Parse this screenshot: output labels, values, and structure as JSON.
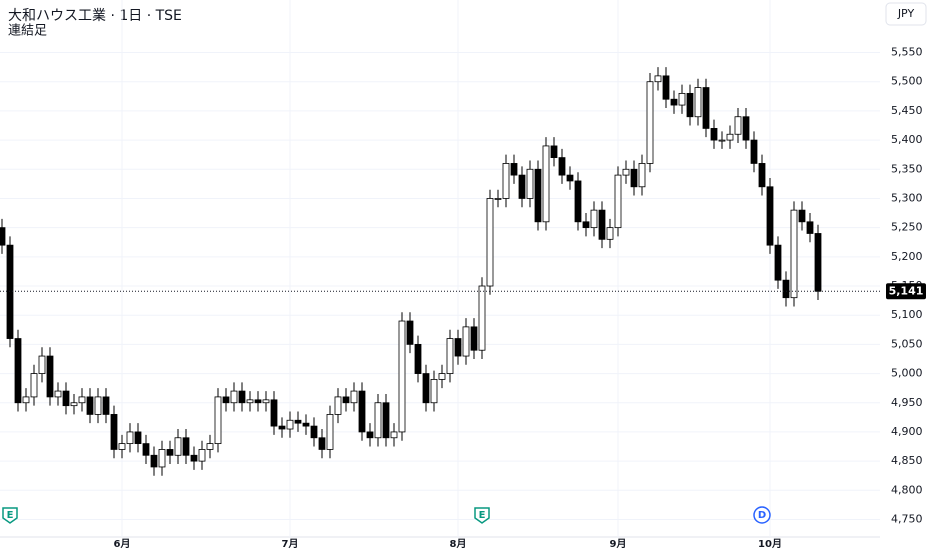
{
  "chart_data": {
    "type": "candlestick",
    "title": "大和ハウス工業 · 1日 · TSE",
    "subtitle": "連結足",
    "currency": "JPY",
    "up_color": "#ffffff",
    "down_color": "#000000",
    "outline_color": "#000000",
    "ylim": [
      4720,
      5640
    ],
    "yticks": [
      {
        "value": 4750,
        "label": "4,750"
      },
      {
        "value": 4800,
        "label": "4,800"
      },
      {
        "value": 4850,
        "label": "4,850"
      },
      {
        "value": 4900,
        "label": "4,900"
      },
      {
        "value": 4950,
        "label": "4,950"
      },
      {
        "value": 5000,
        "label": "5,000"
      },
      {
        "value": 5050,
        "label": "5,050"
      },
      {
        "value": 5100,
        "label": "5,100"
      },
      {
        "value": 5150,
        "label": "5,150"
      },
      {
        "value": 5200,
        "label": "5,200"
      },
      {
        "value": 5250,
        "label": "5,250"
      },
      {
        "value": 5300,
        "label": "5,300"
      },
      {
        "value": 5350,
        "label": "5,350"
      },
      {
        "value": 5400,
        "label": "5,400"
      },
      {
        "value": 5450,
        "label": "5,450"
      },
      {
        "value": 5500,
        "label": "5,500"
      },
      {
        "value": 5550,
        "label": "5,550"
      }
    ],
    "grid": true,
    "last": {
      "value": 5141,
      "label": "5,141"
    },
    "events": [
      {
        "label": "E",
        "at": 1
      },
      {
        "label": "E",
        "at": 60
      },
      {
        "label": "D",
        "at": 95
      }
    ],
    "categories": [
      null,
      null,
      null,
      null,
      null,
      null,
      null,
      null,
      null,
      null,
      null,
      null,
      null,
      null,
      null,
      "6月",
      null,
      null,
      null,
      null,
      null,
      null,
      null,
      null,
      null,
      null,
      null,
      null,
      null,
      null,
      null,
      null,
      null,
      null,
      null,
      null,
      "7月",
      null,
      null,
      null,
      null,
      null,
      null,
      null,
      null,
      null,
      null,
      null,
      null,
      null,
      null,
      null,
      null,
      null,
      null,
      null,
      null,
      "8月",
      null,
      null,
      null,
      null,
      null,
      null,
      null,
      null,
      null,
      null,
      null,
      null,
      null,
      null,
      null,
      null,
      null,
      null,
      null,
      "9月",
      null,
      null,
      null,
      null,
      null,
      null,
      null,
      null,
      null,
      null,
      null,
      null,
      null,
      null,
      null,
      null,
      null,
      null,
      "10月",
      null,
      null,
      null,
      null,
      null,
      null
    ],
    "open": [
      5250,
      5220,
      5060,
      4950,
      4960,
      5000,
      5030,
      4960,
      4970,
      4945,
      4950,
      4960,
      4930,
      4960,
      4930,
      4870,
      4880,
      4900,
      4880,
      4860,
      4840,
      4870,
      4860,
      4890,
      4860,
      4850,
      4870,
      4880,
      4960,
      4950,
      4970,
      4950,
      4955,
      4950,
      4955,
      4910,
      4905,
      4920,
      4915,
      4910,
      4890,
      4870,
      4930,
      4960,
      4950,
      4970,
      4900,
      4890,
      4950,
      4890,
      4900,
      5090,
      5050,
      5000,
      4950,
      4990,
      5000,
      5060,
      5030,
      5080,
      5040,
      5150,
      5300,
      5300,
      5360,
      5340,
      5300,
      5350,
      5260,
      5390,
      5370,
      5340,
      5330,
      5260,
      5250,
      5280,
      5230,
      5250,
      5340,
      5350,
      5320,
      5360,
      5500,
      5510,
      5470,
      5460,
      5480,
      5440,
      5490,
      5420,
      5400,
      5400,
      5410,
      5440,
      5400,
      5360,
      5320,
      5220,
      5160,
      5130,
      5280,
      5260,
      5240
    ],
    "high": [
      5265,
      5235,
      5075,
      4975,
      5015,
      5045,
      5045,
      4985,
      4985,
      4965,
      4975,
      4975,
      4975,
      4975,
      4945,
      4895,
      4915,
      4915,
      4895,
      4875,
      4885,
      4885,
      4905,
      4905,
      4875,
      4885,
      4895,
      4975,
      4975,
      4985,
      4985,
      4970,
      4970,
      4970,
      4970,
      4925,
      4935,
      4935,
      4930,
      4925,
      4905,
      4945,
      4975,
      4975,
      4985,
      4985,
      4915,
      4965,
      4965,
      4915,
      5105,
      5105,
      5065,
      5015,
      5005,
      5015,
      5075,
      5075,
      5095,
      5095,
      5165,
      5315,
      5315,
      5375,
      5375,
      5355,
      5365,
      5365,
      5405,
      5405,
      5385,
      5355,
      5345,
      5275,
      5295,
      5295,
      5265,
      5355,
      5365,
      5365,
      5375,
      5515,
      5525,
      5525,
      5485,
      5495,
      5495,
      5505,
      5505,
      5435,
      5415,
      5425,
      5455,
      5455,
      5415,
      5375,
      5335,
      5235,
      5175,
      5295,
      5295,
      5275,
      5255
    ],
    "low": [
      5205,
      5045,
      4935,
      4935,
      4945,
      4985,
      4945,
      4945,
      4930,
      4930,
      4935,
      4915,
      4915,
      4915,
      4855,
      4855,
      4865,
      4865,
      4845,
      4825,
      4825,
      4845,
      4845,
      4845,
      4835,
      4835,
      4855,
      4865,
      4935,
      4935,
      4935,
      4935,
      4935,
      4935,
      4895,
      4890,
      4890,
      4900,
      4895,
      4875,
      4855,
      4855,
      4915,
      4935,
      4935,
      4885,
      4875,
      4875,
      4875,
      4875,
      4885,
      5035,
      4985,
      4935,
      4935,
      4975,
      4985,
      5015,
      5015,
      5025,
      5025,
      5135,
      5285,
      5285,
      5325,
      5285,
      5285,
      5245,
      5245,
      5355,
      5325,
      5315,
      5245,
      5235,
      5235,
      5215,
      5215,
      5235,
      5325,
      5305,
      5305,
      5345,
      5485,
      5455,
      5445,
      5445,
      5425,
      5425,
      5405,
      5385,
      5385,
      5385,
      5395,
      5385,
      5345,
      5305,
      5205,
      5145,
      5115,
      5115,
      5245,
      5225,
      5126
    ],
    "close": [
      5220,
      5060,
      4950,
      4960,
      5000,
      5030,
      4960,
      4970,
      4945,
      4950,
      4960,
      4930,
      4960,
      4930,
      4870,
      4880,
      4900,
      4880,
      4860,
      4840,
      4870,
      4860,
      4890,
      4860,
      4850,
      4870,
      4880,
      4960,
      4950,
      4970,
      4950,
      4955,
      4950,
      4955,
      4910,
      4905,
      4920,
      4915,
      4910,
      4890,
      4870,
      4930,
      4960,
      4950,
      4970,
      4900,
      4890,
      4950,
      4890,
      4900,
      5090,
      5050,
      5000,
      4950,
      4990,
      5000,
      5060,
      5030,
      5080,
      5040,
      5150,
      5300,
      5300,
      5360,
      5340,
      5300,
      5350,
      5260,
      5390,
      5370,
      5340,
      5330,
      5260,
      5250,
      5280,
      5230,
      5250,
      5340,
      5350,
      5320,
      5360,
      5500,
      5510,
      5470,
      5460,
      5480,
      5440,
      5490,
      5420,
      5400,
      5400,
      5410,
      5440,
      5400,
      5360,
      5320,
      5220,
      5160,
      5130,
      5280,
      5260,
      5240,
      5141
    ]
  }
}
